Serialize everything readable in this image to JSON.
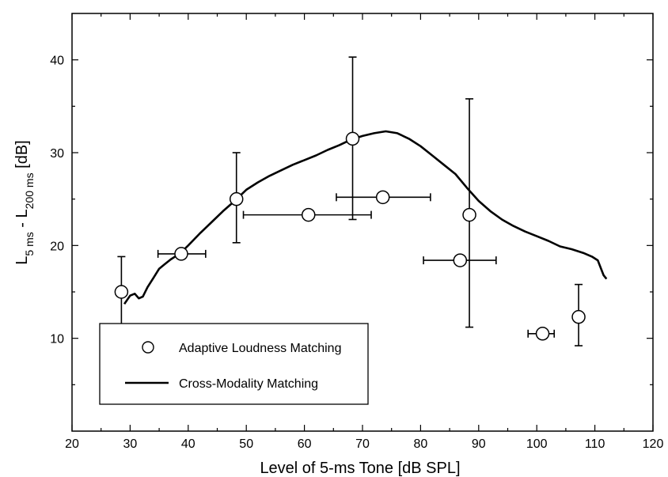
{
  "chart_data": {
    "type": "scatter",
    "xlabel": "Level of 5-ms Tone [dB SPL]",
    "ylabel": {
      "main": "L",
      "sub1": "5 ms",
      "mid": " - L",
      "sub2": "200 ms",
      "end": " [dB]"
    },
    "xlim": [
      20,
      120
    ],
    "ylim": [
      0,
      45
    ],
    "xticks": [
      20,
      30,
      40,
      50,
      60,
      70,
      80,
      90,
      100,
      110,
      120
    ],
    "yticks": [
      10,
      20,
      30,
      40
    ],
    "grid": false,
    "legend_position": "bottom-left",
    "series": [
      {
        "name": "Adaptive Loudness Matching",
        "kind": "points-with-errorbars",
        "marker": "open-circle",
        "points": [
          {
            "x": 28.5,
            "y": 15.0,
            "yerr": [
              11.3,
              18.8
            ]
          },
          {
            "x": 38.8,
            "y": 19.1,
            "xerr": [
              34.8,
              43.0
            ]
          },
          {
            "x": 48.3,
            "y": 25.0,
            "yerr": [
              20.3,
              30.0
            ]
          },
          {
            "x": 60.7,
            "y": 23.3,
            "xerr": [
              49.5,
              71.5
            ]
          },
          {
            "x": 68.3,
            "y": 31.5,
            "yerr": [
              22.8,
              40.3
            ]
          },
          {
            "x": 73.5,
            "y": 25.2,
            "xerr": [
              65.5,
              81.7
            ]
          },
          {
            "x": 86.8,
            "y": 18.4,
            "xerr": [
              80.5,
              93.0
            ]
          },
          {
            "x": 88.4,
            "y": 23.3,
            "yerr": [
              11.2,
              35.8
            ]
          },
          {
            "x": 101.0,
            "y": 10.5,
            "xerr": [
              98.5,
              103.0
            ]
          },
          {
            "x": 107.2,
            "y": 12.3,
            "yerr": [
              9.2,
              15.8
            ]
          }
        ]
      },
      {
        "name": "Cross-Modality Matching",
        "kind": "line",
        "x": [
          29.0,
          30.0,
          30.8,
          31.5,
          32.2,
          33.0,
          34.0,
          35.0,
          36.0,
          37.0,
          38.0,
          39.0,
          40.0,
          42.0,
          44.0,
          46.0,
          48.0,
          50.0,
          52.0,
          54.0,
          56.0,
          58.0,
          60.0,
          62.0,
          64.0,
          66.0,
          68.0,
          70.0,
          72.0,
          74.0,
          76.0,
          78.0,
          80.0,
          82.0,
          84.0,
          86.0,
          88.0,
          90.0,
          92.0,
          94.0,
          96.0,
          98.0,
          100.0,
          102.0,
          104.0,
          106.0,
          108.0,
          109.5,
          110.5,
          111.5,
          112.0
        ],
        "y": [
          13.7,
          14.6,
          14.8,
          14.3,
          14.5,
          15.5,
          16.5,
          17.5,
          18.0,
          18.5,
          18.9,
          19.4,
          20.0,
          21.3,
          22.5,
          23.7,
          24.8,
          26.0,
          26.8,
          27.5,
          28.1,
          28.7,
          29.2,
          29.7,
          30.3,
          30.8,
          31.4,
          31.8,
          32.1,
          32.3,
          32.1,
          31.5,
          30.7,
          29.7,
          28.7,
          27.7,
          26.2,
          24.8,
          23.7,
          22.8,
          22.1,
          21.5,
          21.0,
          20.5,
          19.9,
          19.6,
          19.2,
          18.8,
          18.4,
          16.8,
          16.4
        ]
      }
    ]
  }
}
